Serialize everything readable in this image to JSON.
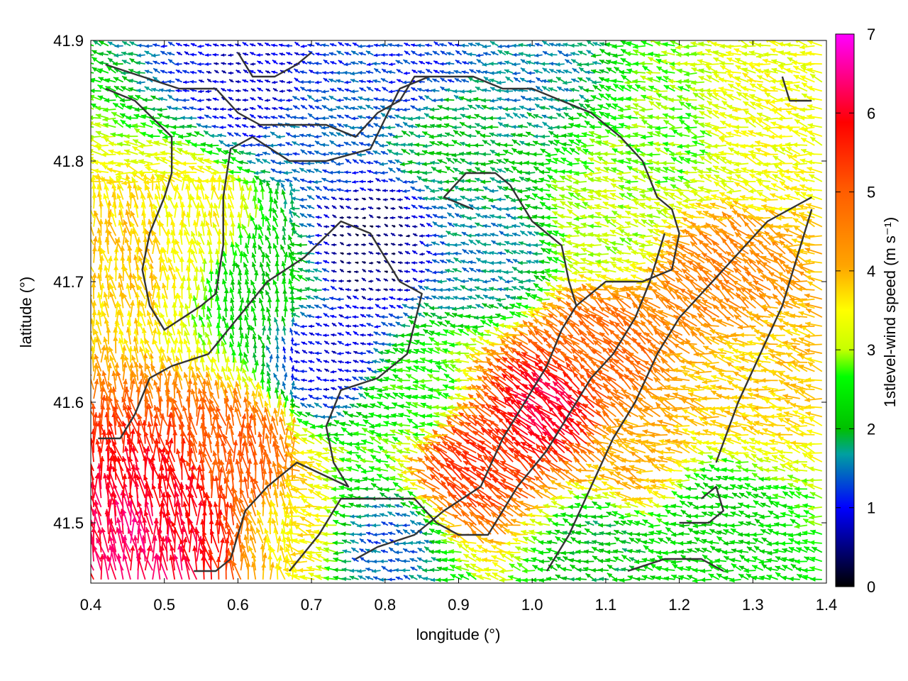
{
  "chart_data": {
    "type": "vector-field",
    "xlabel": "longitude (°)",
    "ylabel": "latitude (°)",
    "xlim": [
      0.4,
      1.4
    ],
    "ylim": [
      41.45,
      41.9
    ],
    "xticks": [
      "0.4",
      "0.5",
      "0.6",
      "0.7",
      "0.8",
      "0.9",
      "1.0",
      "1.1",
      "1.2",
      "1.3",
      "1.4"
    ],
    "yticks": [
      "41.5",
      "41.6",
      "41.7",
      "41.8",
      "41.9"
    ],
    "colorbar": {
      "label": "1stlevel-wind speed (m s⁻¹)",
      "range": [
        0,
        7
      ],
      "ticks": [
        "0",
        "1",
        "2",
        "3",
        "4",
        "5",
        "6",
        "7"
      ],
      "colors": [
        "#000000",
        "#0000ff",
        "#00c000",
        "#00ff00",
        "#ffff00",
        "#ffa500",
        "#ff5a00",
        "#ff0000",
        "#ff00ff"
      ]
    },
    "grid": false,
    "speed_regions": [
      {
        "lon": 0.52,
        "lat": 41.5,
        "speed": 6.0
      },
      {
        "lon": 0.48,
        "lat": 41.48,
        "speed": 6.3
      },
      {
        "lon": 0.6,
        "lat": 41.54,
        "speed": 5.0
      },
      {
        "lon": 0.45,
        "lat": 41.72,
        "speed": 3.8
      },
      {
        "lon": 0.55,
        "lat": 41.76,
        "speed": 3.5
      },
      {
        "lon": 0.65,
        "lat": 41.7,
        "speed": 2.2
      },
      {
        "lon": 0.7,
        "lat": 41.82,
        "speed": 1.4
      },
      {
        "lon": 0.62,
        "lat": 41.86,
        "speed": 0.8
      },
      {
        "lon": 0.78,
        "lat": 41.73,
        "speed": 0.4
      },
      {
        "lon": 0.73,
        "lat": 41.64,
        "speed": 0.9
      },
      {
        "lon": 0.95,
        "lat": 41.72,
        "speed": 1.6
      },
      {
        "lon": 0.9,
        "lat": 41.82,
        "speed": 2.0
      },
      {
        "lon": 0.85,
        "lat": 41.6,
        "speed": 2.6
      },
      {
        "lon": 1.03,
        "lat": 41.59,
        "speed": 6.1
      },
      {
        "lon": 0.93,
        "lat": 41.55,
        "speed": 5.4
      },
      {
        "lon": 1.1,
        "lat": 41.64,
        "speed": 4.8
      },
      {
        "lon": 1.15,
        "lat": 41.55,
        "speed": 4.0
      },
      {
        "lon": 1.25,
        "lat": 41.7,
        "speed": 4.5
      },
      {
        "lon": 1.3,
        "lat": 41.62,
        "speed": 3.8
      },
      {
        "lon": 1.3,
        "lat": 41.83,
        "speed": 3.4
      },
      {
        "lon": 1.2,
        "lat": 41.82,
        "speed": 2.8
      },
      {
        "lon": 1.25,
        "lat": 41.5,
        "speed": 2.2
      },
      {
        "lon": 1.1,
        "lat": 41.48,
        "speed": 2.0
      },
      {
        "lon": 0.8,
        "lat": 41.48,
        "speed": 1.4
      },
      {
        "lon": 0.68,
        "lat": 41.49,
        "speed": 3.6
      },
      {
        "lon": 0.85,
        "lat": 41.88,
        "speed": 1.2
      },
      {
        "lon": 1.0,
        "lat": 41.88,
        "speed": 1.6
      },
      {
        "lon": 1.12,
        "lat": 41.75,
        "speed": 3.0
      }
    ],
    "contours": [
      [
        [
          0.42,
          41.88
        ],
        [
          0.47,
          41.87
        ],
        [
          0.52,
          41.86
        ],
        [
          0.55,
          41.86
        ],
        [
          0.57,
          41.86
        ],
        [
          0.6,
          41.84
        ],
        [
          0.63,
          41.83
        ],
        [
          0.67,
          41.83
        ],
        [
          0.72,
          41.83
        ],
        [
          0.76,
          41.82
        ],
        [
          0.79,
          41.84
        ],
        [
          0.82,
          41.85
        ],
        [
          0.84,
          41.87
        ],
        [
          0.88,
          41.87
        ],
        [
          0.92,
          41.87
        ],
        [
          0.96,
          41.86
        ],
        [
          1.0,
          41.86
        ],
        [
          1.04,
          41.85
        ],
        [
          1.08,
          41.84
        ],
        [
          1.12,
          41.82
        ],
        [
          1.15,
          41.8
        ],
        [
          1.17,
          41.77
        ],
        [
          1.19,
          41.76
        ],
        [
          1.2,
          41.74
        ],
        [
          1.19,
          41.71
        ],
        [
          1.15,
          41.7
        ],
        [
          1.1,
          41.7
        ],
        [
          1.08,
          41.69
        ],
        [
          1.06,
          41.68
        ],
        [
          1.05,
          41.7
        ],
        [
          1.04,
          41.73
        ],
        [
          1.0,
          41.75
        ],
        [
          0.97,
          41.78
        ],
        [
          0.95,
          41.79
        ],
        [
          0.91,
          41.79
        ],
        [
          0.88,
          41.77
        ],
        [
          0.92,
          41.76
        ]
      ],
      [
        [
          0.42,
          41.86
        ],
        [
          0.46,
          41.85
        ],
        [
          0.51,
          41.82
        ],
        [
          0.51,
          41.79
        ],
        [
          0.5,
          41.77
        ],
        [
          0.48,
          41.74
        ],
        [
          0.47,
          41.71
        ],
        [
          0.48,
          41.68
        ],
        [
          0.5,
          41.66
        ],
        [
          0.55,
          41.68
        ],
        [
          0.57,
          41.69
        ],
        [
          0.58,
          41.73
        ],
        [
          0.58,
          41.77
        ],
        [
          0.59,
          41.81
        ],
        [
          0.62,
          41.82
        ],
        [
          0.67,
          41.8
        ],
        [
          0.72,
          41.8
        ],
        [
          0.78,
          41.81
        ],
        [
          0.82,
          41.86
        ],
        [
          0.86,
          41.87
        ]
      ],
      [
        [
          0.41,
          41.57
        ],
        [
          0.44,
          41.57
        ],
        [
          0.46,
          41.59
        ],
        [
          0.48,
          41.62
        ],
        [
          0.51,
          41.63
        ],
        [
          0.56,
          41.64
        ],
        [
          0.6,
          41.67
        ],
        [
          0.64,
          41.7
        ],
        [
          0.69,
          41.72
        ],
        [
          0.74,
          41.75
        ],
        [
          0.78,
          41.74
        ],
        [
          0.82,
          41.7
        ],
        [
          0.85,
          41.69
        ],
        [
          0.83,
          41.64
        ],
        [
          0.79,
          41.62
        ],
        [
          0.74,
          41.61
        ],
        [
          0.72,
          41.58
        ],
        [
          0.73,
          41.55
        ],
        [
          0.75,
          41.53
        ],
        [
          0.68,
          41.55
        ],
        [
          0.64,
          41.53
        ],
        [
          0.61,
          41.51
        ],
        [
          0.59,
          41.47
        ],
        [
          0.57,
          41.46
        ],
        [
          0.54,
          41.46
        ]
      ],
      [
        [
          0.67,
          41.46
        ],
        [
          0.71,
          41.49
        ],
        [
          0.74,
          41.52
        ],
        [
          0.79,
          41.52
        ],
        [
          0.84,
          41.52
        ],
        [
          0.87,
          41.5
        ],
        [
          0.9,
          41.49
        ],
        [
          0.94,
          41.49
        ],
        [
          0.98,
          41.53
        ],
        [
          1.02,
          41.56
        ],
        [
          1.05,
          41.59
        ],
        [
          1.08,
          41.62
        ],
        [
          1.11,
          41.64
        ],
        [
          1.14,
          41.67
        ],
        [
          1.16,
          41.7
        ],
        [
          1.18,
          41.74
        ]
      ],
      [
        [
          0.76,
          41.47
        ],
        [
          0.79,
          41.48
        ],
        [
          0.84,
          41.49
        ],
        [
          0.88,
          41.51
        ],
        [
          0.93,
          41.53
        ],
        [
          0.96,
          41.57
        ],
        [
          0.99,
          41.6
        ],
        [
          1.02,
          41.63
        ],
        [
          1.04,
          41.66
        ],
        [
          1.06,
          41.68
        ]
      ],
      [
        [
          1.02,
          41.46
        ],
        [
          1.05,
          41.49
        ],
        [
          1.08,
          41.53
        ],
        [
          1.11,
          41.57
        ],
        [
          1.14,
          41.6
        ],
        [
          1.17,
          41.64
        ],
        [
          1.2,
          41.67
        ],
        [
          1.23,
          41.69
        ],
        [
          1.26,
          41.71
        ],
        [
          1.29,
          41.73
        ],
        [
          1.32,
          41.75
        ],
        [
          1.35,
          41.76
        ],
        [
          1.38,
          41.77
        ]
      ],
      [
        [
          1.13,
          41.46
        ],
        [
          1.18,
          41.47
        ],
        [
          1.23,
          41.47
        ],
        [
          1.26,
          41.46
        ]
      ],
      [
        [
          1.2,
          41.5
        ],
        [
          1.24,
          41.5
        ],
        [
          1.26,
          41.51
        ],
        [
          1.25,
          41.53
        ],
        [
          1.23,
          41.52
        ]
      ],
      [
        [
          1.25,
          41.55
        ],
        [
          1.28,
          41.6
        ],
        [
          1.31,
          41.64
        ],
        [
          1.34,
          41.68
        ],
        [
          1.36,
          41.72
        ],
        [
          1.38,
          41.76
        ]
      ],
      [
        [
          1.34,
          41.87
        ],
        [
          1.35,
          41.85
        ],
        [
          1.38,
          41.85
        ]
      ],
      [
        [
          0.6,
          41.89
        ],
        [
          0.62,
          41.87
        ],
        [
          0.65,
          41.87
        ],
        [
          0.68,
          41.88
        ],
        [
          0.7,
          41.89
        ]
      ]
    ]
  }
}
